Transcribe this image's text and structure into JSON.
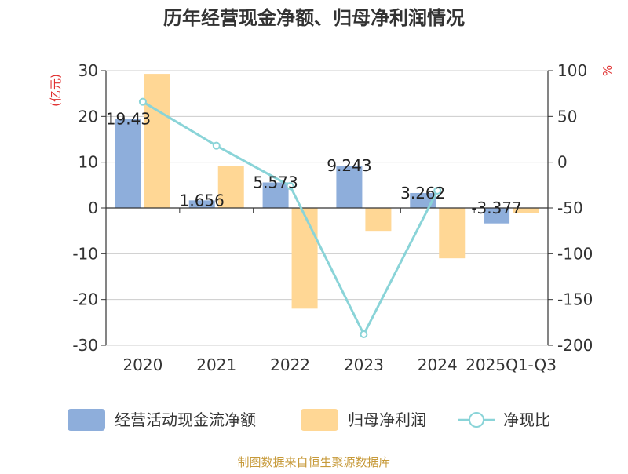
{
  "chart_data": {
    "type": "bar+line",
    "title": "历年经营现金净额、归母净利润情况",
    "categories": [
      "2020",
      "2021",
      "2022",
      "2023",
      "2024",
      "2025Q1-Q3"
    ],
    "left_axis": {
      "unit": "(亿元)",
      "min": -30,
      "max": 30,
      "step": 10,
      "ticks": [
        "30",
        "20",
        "10",
        "0",
        "-10",
        "-20",
        "-30"
      ]
    },
    "right_axis": {
      "unit": "%",
      "min": -200,
      "max": 100,
      "step": 50,
      "ticks": [
        "100",
        "50",
        "0",
        "-50",
        "-100",
        "-150",
        "-200"
      ]
    },
    "series": [
      {
        "name": "经营活动现金流净额",
        "kind": "bar",
        "axis": "left",
        "color": "#8eaedb",
        "values": [
          19.43,
          1.656,
          5.573,
          9.243,
          3.262,
          -3.377
        ],
        "labels": [
          "19.43",
          "1.656",
          "5.573",
          "9.243",
          "3.262",
          "-3.377"
        ]
      },
      {
        "name": "归母净利润",
        "kind": "bar",
        "axis": "left",
        "color": "#ffd795",
        "values": [
          29.3,
          9.1,
          -22.0,
          -5.0,
          -11.0,
          -1.2
        ]
      },
      {
        "name": "净现比",
        "kind": "line",
        "axis": "right",
        "color": "#8ad4d8",
        "values": [
          66,
          18,
          -26,
          -188,
          -31,
          null
        ]
      }
    ]
  },
  "legend": {
    "items": [
      {
        "label": "经营活动现金流净额"
      },
      {
        "label": "归母净利润"
      },
      {
        "label": "净现比"
      }
    ]
  },
  "footer": {
    "source": "制图数据来自恒生聚源数据库"
  },
  "colors": {
    "axis_unit": "#e03030",
    "footer": "#c79a3a",
    "grid": "#cccccc",
    "text": "#333333"
  }
}
